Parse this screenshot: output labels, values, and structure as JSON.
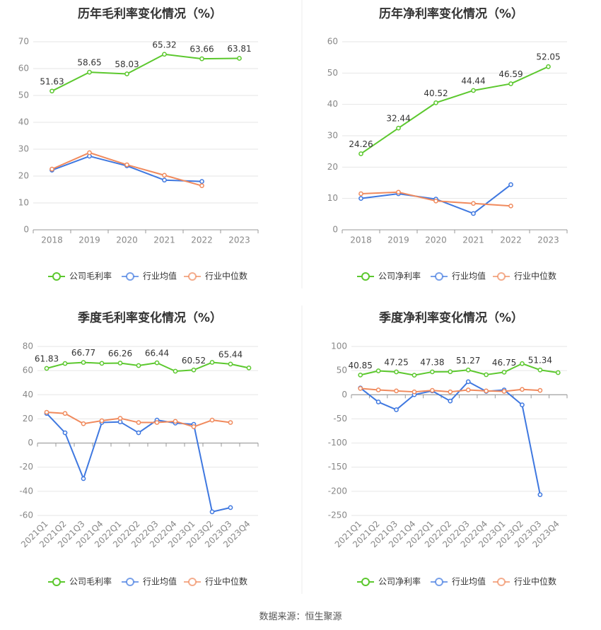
{
  "source": "数据来源：恒生聚源",
  "colors": {
    "company": "#5cc82e",
    "industry_avg": "#3f78e0",
    "industry_median": "#f08a5d"
  },
  "chart_data": [
    {
      "type": "line",
      "title": "历年毛利率变化情况（%）",
      "categories": [
        "2018",
        "2019",
        "2020",
        "2021",
        "2022",
        "2023"
      ],
      "ylim": [
        0,
        70
      ],
      "yticks": [
        0,
        10,
        20,
        30,
        40,
        50,
        60,
        70
      ],
      "grid": true,
      "legend": "bottom",
      "series": [
        {
          "name": "公司毛利率",
          "values": [
            51.63,
            58.65,
            58.03,
            65.32,
            63.66,
            63.81
          ],
          "labels": [
            "51.63",
            "58.65",
            "58.03",
            "65.32",
            "63.66",
            "63.81"
          ]
        },
        {
          "name": "行业均值",
          "values": [
            22.2,
            27.4,
            23.8,
            18.5,
            18.0,
            null
          ]
        },
        {
          "name": "行业中位数",
          "values": [
            22.6,
            28.7,
            24.2,
            20.3,
            16.4,
            null
          ]
        }
      ]
    },
    {
      "type": "line",
      "title": "历年净利率变化情况（%）",
      "categories": [
        "2018",
        "2019",
        "2020",
        "2021",
        "2022",
        "2023"
      ],
      "ylim": [
        0,
        60
      ],
      "yticks": [
        0,
        10,
        20,
        30,
        40,
        50,
        60
      ],
      "grid": true,
      "legend": "bottom",
      "series": [
        {
          "name": "公司净利率",
          "values": [
            24.26,
            32.44,
            40.52,
            44.44,
            46.59,
            52.05
          ],
          "labels": [
            "24.26",
            "32.44",
            "40.52",
            "44.44",
            "46.59",
            "52.05"
          ]
        },
        {
          "name": "行业均值",
          "values": [
            10.0,
            11.5,
            9.8,
            5.2,
            14.4,
            null
          ]
        },
        {
          "name": "行业中位数",
          "values": [
            11.5,
            12.0,
            9.2,
            8.4,
            7.6,
            null
          ]
        }
      ]
    },
    {
      "type": "line",
      "title": "季度毛利率变化情况（%）",
      "categories": [
        "2021Q1",
        "2021Q2",
        "2021Q3",
        "2021Q4",
        "2022Q1",
        "2022Q2",
        "2022Q3",
        "2022Q4",
        "2023Q1",
        "2023Q2",
        "2023Q3",
        "2023Q4"
      ],
      "ylim": [
        -60,
        80
      ],
      "yticks": [
        -60,
        -40,
        -20,
        0,
        20,
        40,
        60,
        80
      ],
      "grid": true,
      "legend": "bottom",
      "series": [
        {
          "name": "公司毛利率",
          "values": [
            61.83,
            65.9,
            66.77,
            66.0,
            66.26,
            64.2,
            66.44,
            59.5,
            60.52,
            66.8,
            65.44,
            62.2
          ],
          "labels": [
            "61.83",
            "",
            "66.77",
            "",
            "66.26",
            "",
            "66.44",
            "",
            "60.52",
            "",
            "65.44",
            ""
          ]
        },
        {
          "name": "行业均值",
          "values": [
            24.5,
            8.5,
            -29.5,
            17.0,
            17.5,
            8.5,
            19.0,
            16.5,
            15.5,
            -57.0,
            -53.5,
            null
          ]
        },
        {
          "name": "行业中位数",
          "values": [
            25.5,
            24.5,
            16.0,
            18.5,
            20.5,
            17.0,
            17.0,
            18.0,
            13.5,
            19.0,
            17.0,
            null
          ]
        }
      ]
    },
    {
      "type": "line",
      "title": "季度净利率变化情况（%）",
      "categories": [
        "2021Q1",
        "2021Q2",
        "2021Q3",
        "2021Q4",
        "2022Q1",
        "2022Q2",
        "2022Q3",
        "2022Q4",
        "2023Q1",
        "2023Q2",
        "2023Q3",
        "2023Q4"
      ],
      "ylim": [
        -250,
        100
      ],
      "yticks": [
        -250,
        -200,
        -150,
        -100,
        -50,
        0,
        50,
        100
      ],
      "grid": true,
      "legend": "bottom",
      "series": [
        {
          "name": "公司净利率",
          "values": [
            40.85,
            49.5,
            47.25,
            40.5,
            47.38,
            47.6,
            51.27,
            41.5,
            46.75,
            64.5,
            51.34,
            45.8
          ],
          "labels": [
            "40.85",
            "",
            "47.25",
            "",
            "47.38",
            "",
            "51.27",
            "",
            "46.75",
            "",
            "51.34",
            ""
          ]
        },
        {
          "name": "行业均值",
          "values": [
            14,
            -15,
            -31,
            0,
            8,
            -13,
            27,
            7,
            10,
            -21,
            -207,
            null
          ]
        },
        {
          "name": "行业中位数",
          "values": [
            13,
            10,
            8,
            6,
            9,
            6,
            10,
            8,
            7,
            11,
            9,
            null
          ]
        }
      ]
    }
  ]
}
